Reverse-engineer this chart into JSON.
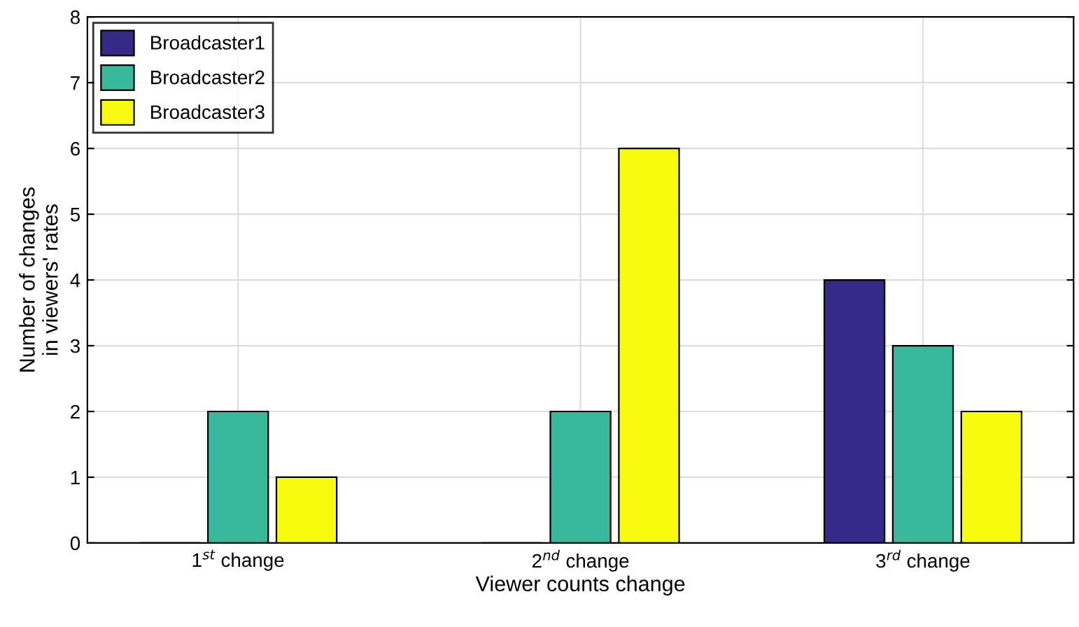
{
  "chart_data": {
    "type": "bar",
    "xlabel": "Viewer counts change",
    "ylabel": "Number of changes\nin viewers' rates",
    "categories": [
      "1$^{st}$ change",
      "2$^{nd}$ change",
      "3$^{rd}$ change"
    ],
    "series": [
      {
        "name": "Broadcaster1",
        "color": "#352a87",
        "values": [
          0,
          0,
          4
        ]
      },
      {
        "name": "Broadcaster2",
        "color": "#38b99e",
        "values": [
          2,
          2,
          3
        ]
      },
      {
        "name": "Broadcaster3",
        "color": "#f9fb0e",
        "values": [
          1,
          6,
          2
        ]
      }
    ],
    "ylim": [
      0,
      8
    ],
    "yticks": [
      0,
      1,
      2,
      3,
      4,
      5,
      6,
      7,
      8
    ],
    "grid": true,
    "legend": "top left"
  }
}
